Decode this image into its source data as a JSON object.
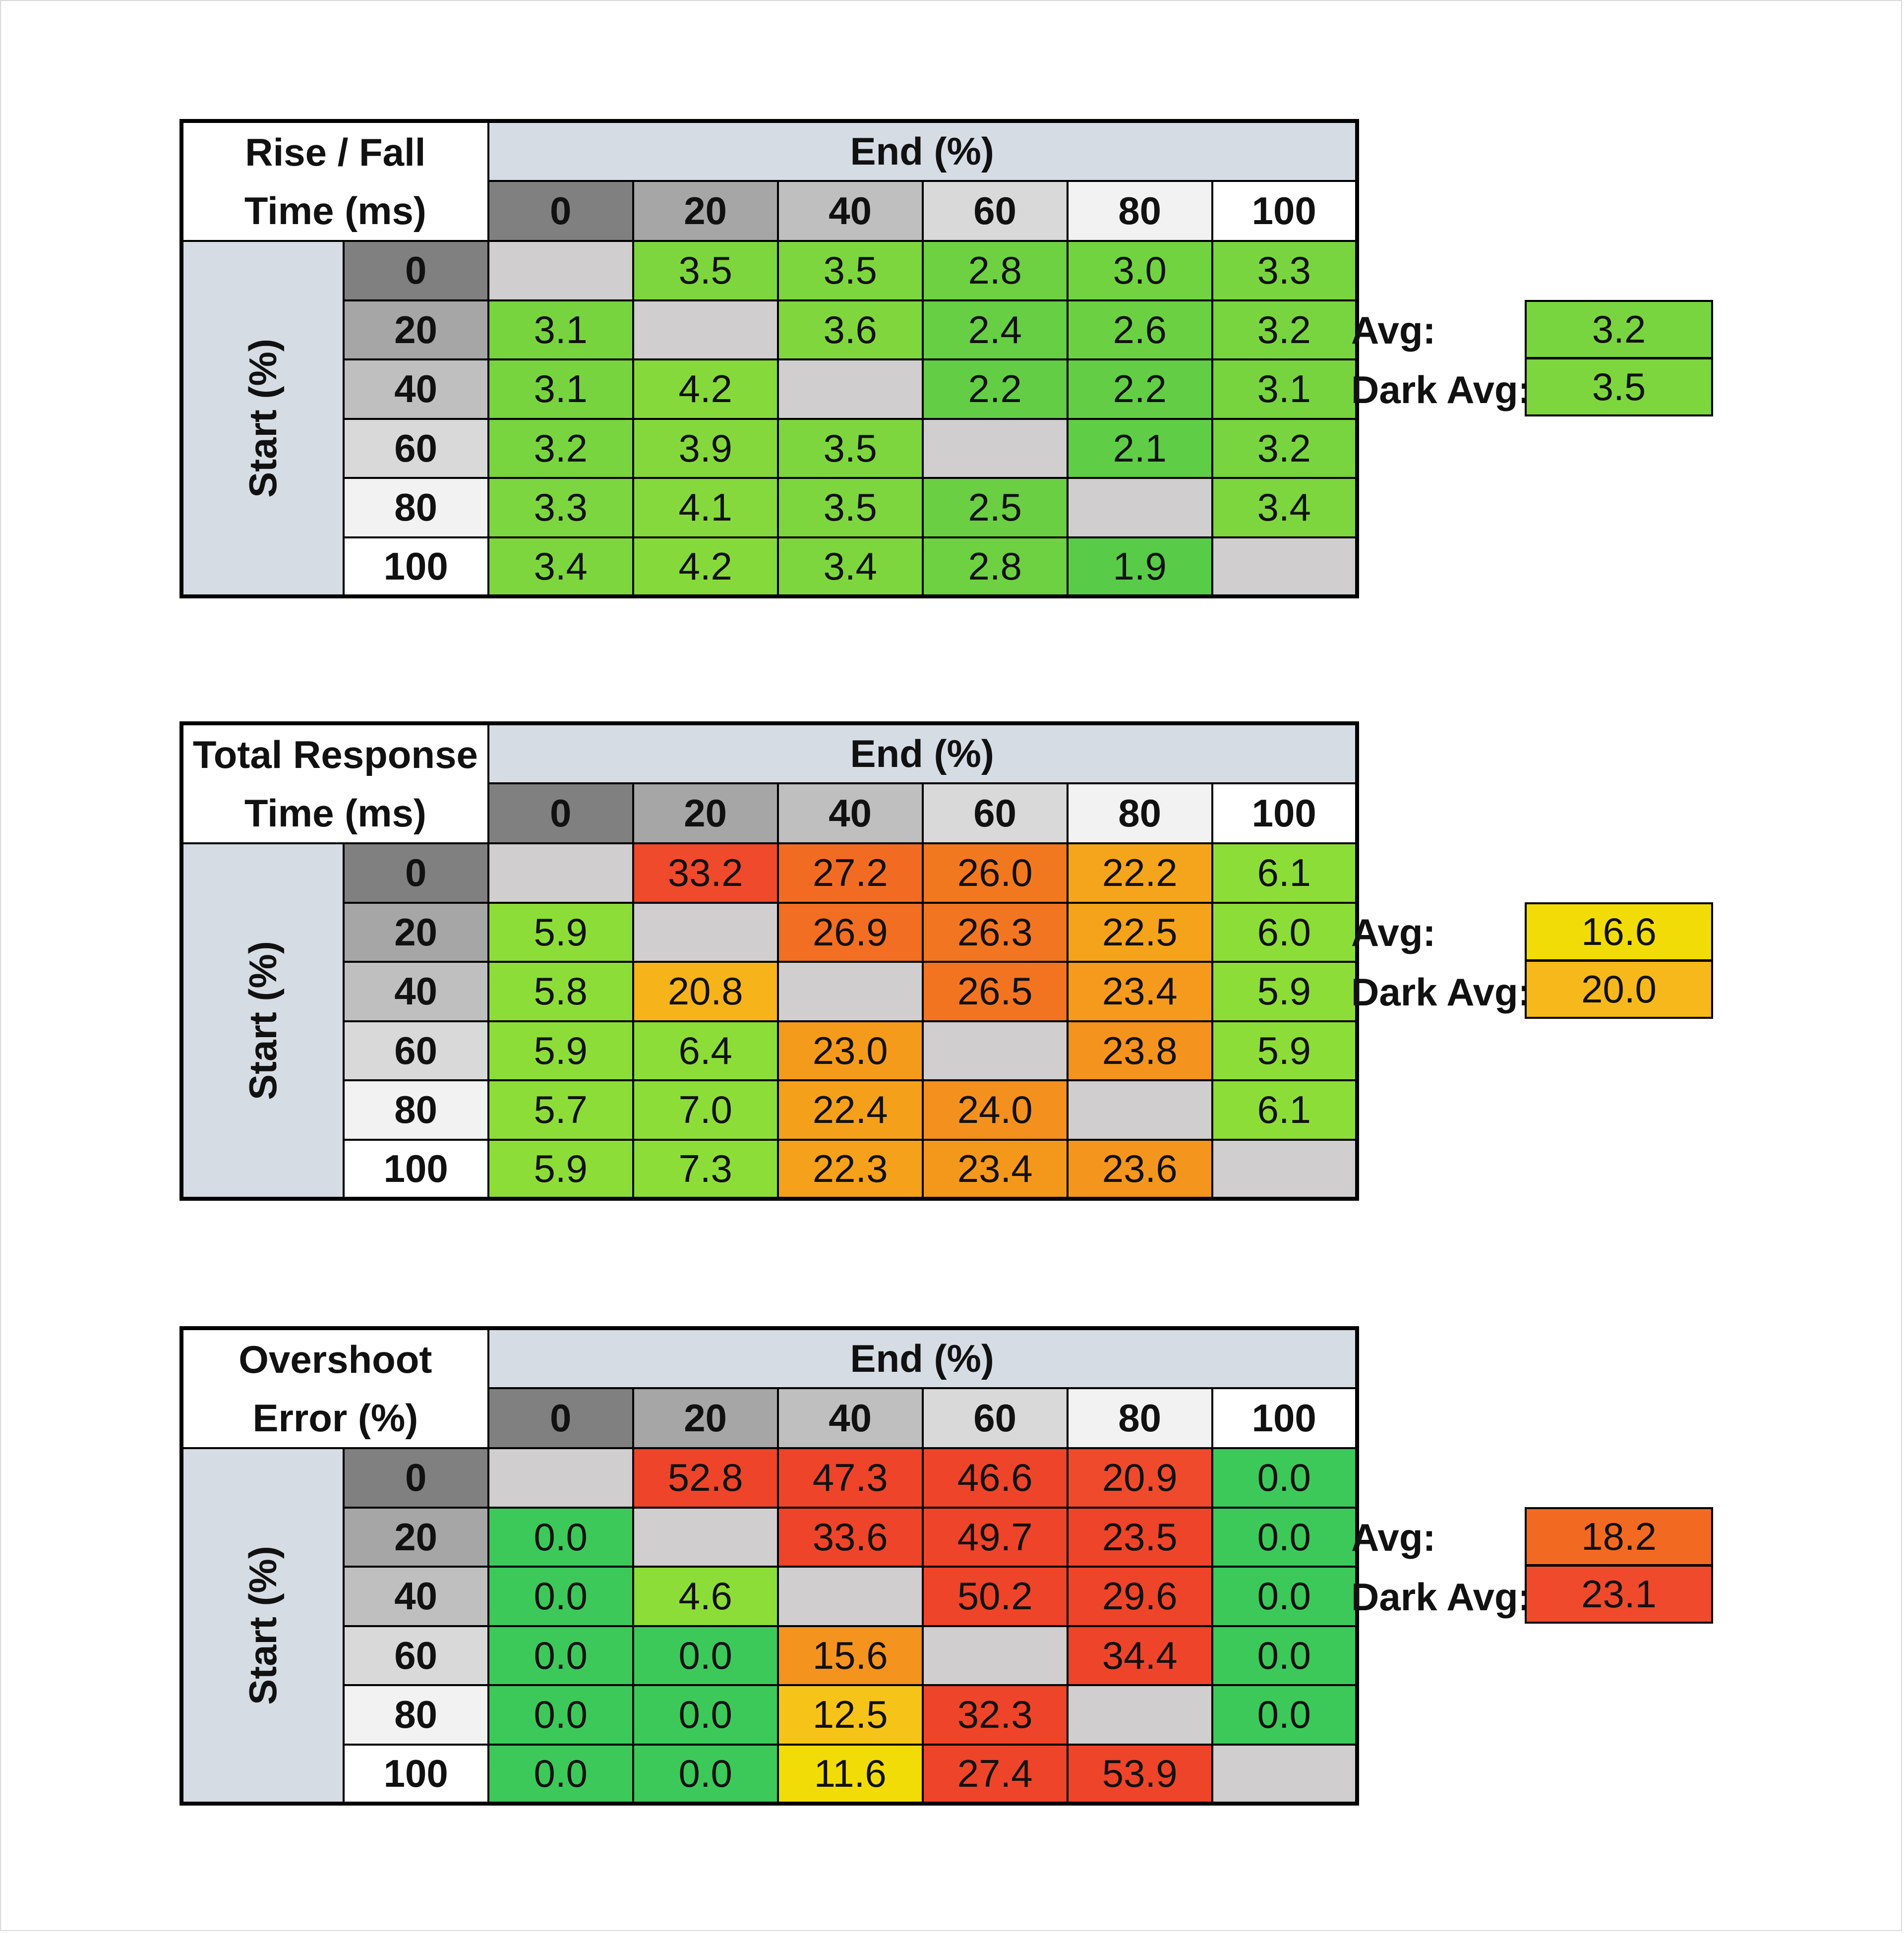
{
  "chart_data": [
    {
      "type": "table",
      "title_lines": [
        "Rise / Fall",
        "Time (ms)"
      ],
      "column_header": "End (%)",
      "row_header": "Start (%)",
      "levels": [
        "0",
        "20",
        "40",
        "60",
        "80",
        "100"
      ],
      "rows": [
        [
          "",
          "3.5",
          "3.5",
          "2.8",
          "3.0",
          "3.3"
        ],
        [
          "3.1",
          "",
          "3.6",
          "2.4",
          "2.6",
          "3.2"
        ],
        [
          "3.1",
          "4.2",
          "",
          "2.2",
          "2.2",
          "3.1"
        ],
        [
          "3.2",
          "3.9",
          "3.5",
          "",
          "2.1",
          "3.2"
        ],
        [
          "3.3",
          "4.1",
          "3.5",
          "2.5",
          "",
          "3.4"
        ],
        [
          "3.4",
          "4.2",
          "3.4",
          "2.8",
          "1.9",
          ""
        ]
      ],
      "colors": [
        [
          "#d0cece",
          "#7dd63e",
          "#7dd63e",
          "#6dd142",
          "#72d341",
          "#79d53f"
        ],
        [
          "#77d43f",
          "#d0cece",
          "#80d73d",
          "#66cf44",
          "#6bd142",
          "#79d53f"
        ],
        [
          "#77d43f",
          "#86d93b",
          "#d0cece",
          "#63ce45",
          "#63ce45",
          "#77d43f"
        ],
        [
          "#79d53f",
          "#84d83c",
          "#7dd63e",
          "#d0cece",
          "#5fcd46",
          "#79d53f"
        ],
        [
          "#7bd63f",
          "#85d93c",
          "#7dd63e",
          "#6acf43",
          "#d0cece",
          "#7dd63e"
        ],
        [
          "#7dd63e",
          "#86d93b",
          "#7dd63e",
          "#6dd142",
          "#58cb48",
          "#d0cece"
        ]
      ],
      "avg_label": "Avg:",
      "avg_value": "3.2",
      "avg_color": "#79d53f",
      "dark_avg_label": "Dark Avg:",
      "dark_avg_value": "3.5",
      "dark_avg_color": "#7dd63e"
    },
    {
      "type": "table",
      "title_lines": [
        "Total Response",
        "Time (ms)"
      ],
      "column_header": "End (%)",
      "row_header": "Start (%)",
      "levels": [
        "0",
        "20",
        "40",
        "60",
        "80",
        "100"
      ],
      "rows": [
        [
          "",
          "33.2",
          "27.2",
          "26.0",
          "22.2",
          "6.1"
        ],
        [
          "5.9",
          "",
          "26.9",
          "26.3",
          "22.5",
          "6.0"
        ],
        [
          "5.8",
          "20.8",
          "",
          "26.5",
          "23.4",
          "5.9"
        ],
        [
          "5.9",
          "6.4",
          "23.0",
          "",
          "23.8",
          "5.9"
        ],
        [
          "5.7",
          "7.0",
          "22.4",
          "24.0",
          "",
          "6.1"
        ],
        [
          "5.9",
          "7.3",
          "22.3",
          "23.4",
          "23.6",
          ""
        ]
      ],
      "colors": [
        [
          "#d0cece",
          "#ef4a2c",
          "#f16c22",
          "#f27820",
          "#f5a51b",
          "#8ddd38"
        ],
        [
          "#8ddd38",
          "#d0cece",
          "#f16e22",
          "#f27621",
          "#f5a31b",
          "#8ddd38"
        ],
        [
          "#8ddd38",
          "#f6b31a",
          "#d0cece",
          "#f27421",
          "#f59a1c",
          "#8ddd38"
        ],
        [
          "#8ddd38",
          "#8ddd38",
          "#f59b1c",
          "#d0cece",
          "#f4931d",
          "#8ddd38"
        ],
        [
          "#8ddd38",
          "#8ddd38",
          "#f5a01b",
          "#f4901e",
          "#d0cece",
          "#8ddd38"
        ],
        [
          "#8ddd38",
          "#8ddd38",
          "#f5a11b",
          "#f4981c",
          "#f4961d",
          "#d0cece"
        ]
      ],
      "avg_label": "Avg:",
      "avg_value": "16.6",
      "avg_color": "#f2dc07",
      "dark_avg_label": "Dark Avg:",
      "dark_avg_value": "20.0",
      "dark_avg_color": "#f6b81a"
    },
    {
      "type": "table",
      "title_lines": [
        "Overshoot",
        "Error (%)"
      ],
      "column_header": "End (%)",
      "row_header": "Start (%)",
      "levels": [
        "0",
        "20",
        "40",
        "60",
        "80",
        "100"
      ],
      "rows": [
        [
          "",
          "52.8",
          "47.3",
          "46.6",
          "20.9",
          "0.0"
        ],
        [
          "0.0",
          "",
          "33.6",
          "49.7",
          "23.5",
          "0.0"
        ],
        [
          "0.0",
          "4.6",
          "",
          "50.2",
          "29.6",
          "0.0"
        ],
        [
          "0.0",
          "0.0",
          "15.6",
          "",
          "34.4",
          "0.0"
        ],
        [
          "0.0",
          "0.0",
          "12.5",
          "32.3",
          "",
          "0.0"
        ],
        [
          "0.0",
          "0.0",
          "11.6",
          "27.4",
          "53.9",
          ""
        ]
      ],
      "colors": [
        [
          "#d0cece",
          "#ee4429",
          "#ee4429",
          "#ee4429",
          "#ef4a2c",
          "#3cc95a"
        ],
        [
          "#3cc95a",
          "#d0cece",
          "#ee4429",
          "#ee4429",
          "#ee4429",
          "#3cc95a"
        ],
        [
          "#3cc95a",
          "#8ddd38",
          "#d0cece",
          "#ee4429",
          "#ee4429",
          "#3cc95a"
        ],
        [
          "#3cc95a",
          "#3cc95a",
          "#f4931d",
          "#d0cece",
          "#ee4429",
          "#3cc95a"
        ],
        [
          "#3cc95a",
          "#3cc95a",
          "#f6c419",
          "#ee4429",
          "#d0cece",
          "#3cc95a"
        ],
        [
          "#3cc95a",
          "#3cc95a",
          "#f2dc07",
          "#ee4429",
          "#ee4429",
          "#d0cece"
        ]
      ],
      "avg_label": "Avg:",
      "avg_value": "18.2",
      "avg_color": "#f26a22",
      "dark_avg_label": "Dark Avg:",
      "dark_avg_value": "23.1",
      "dark_avg_color": "#ef4a2c"
    }
  ],
  "level_colors": [
    "#808080",
    "#a6a6a6",
    "#bfbfbf",
    "#d9d9d9",
    "#f2f2f2",
    "#ffffff"
  ],
  "header_bg": "#d6dce4",
  "empty_cell_color": "#d0cece"
}
